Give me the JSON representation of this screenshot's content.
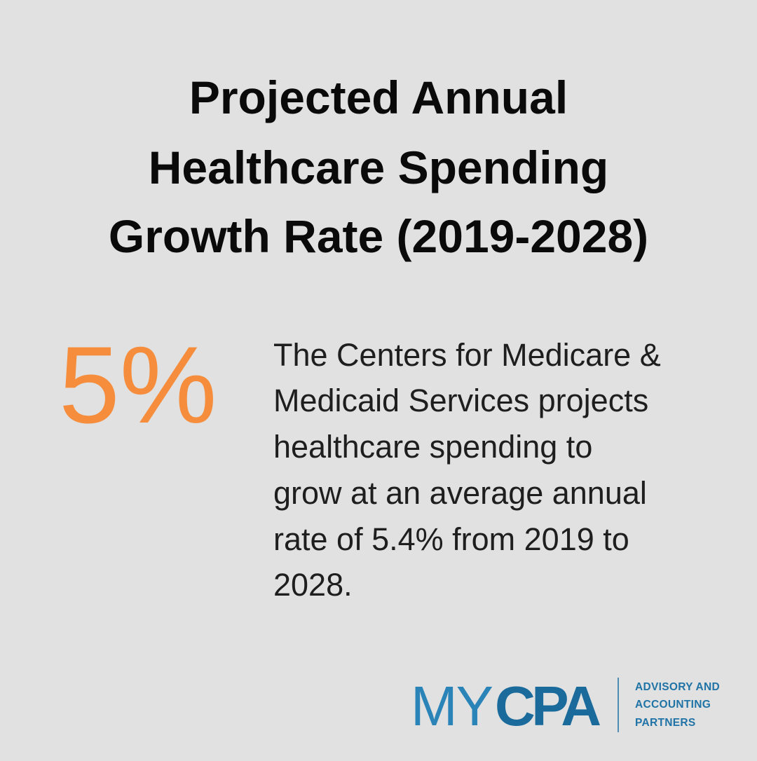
{
  "title_lines": [
    "Projected Annual",
    "Healthcare Spending",
    "Growth Rate (2019-2028)"
  ],
  "stat": "5%",
  "description_lines": [
    "The Centers for Medicare &",
    "Medicaid Services projects",
    "healthcare spending to",
    "grow at an average annual",
    "rate of 5.4% from 2019 to",
    "2028."
  ],
  "logo": {
    "my": "MY",
    "cpa": "CPA",
    "tagline_lines": [
      "ADVISORY AND",
      "ACCOUNTING",
      "PARTNERS"
    ]
  }
}
